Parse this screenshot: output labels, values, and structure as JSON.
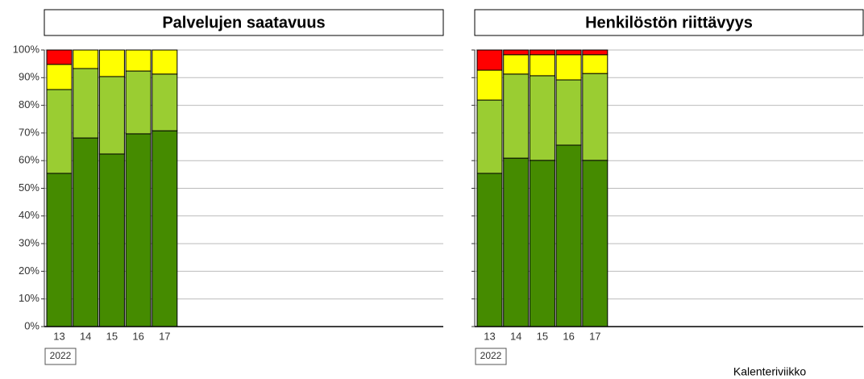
{
  "chart_data": [
    {
      "type": "stacked_bar",
      "title": "Palvelujen saatavuus",
      "year": "2022",
      "categories": [
        "13",
        "14",
        "15",
        "16",
        "17"
      ],
      "series": [
        {
          "color": "#458b00",
          "values": [
            55.4,
            68.2,
            62.4,
            69.7,
            70.8
          ]
        },
        {
          "color": "#9acd32",
          "values": [
            30.3,
            25.1,
            28.0,
            22.7,
            20.5
          ]
        },
        {
          "color": "#ffff00",
          "values": [
            9.1,
            6.7,
            9.6,
            7.6,
            8.7
          ]
        },
        {
          "color": "#ff0000",
          "values": [
            5.2,
            0,
            0,
            0,
            0
          ]
        }
      ],
      "ylim": [
        0,
        100
      ],
      "yticks": [
        {
          "value": 0,
          "label": "0%"
        },
        {
          "value": 10,
          "label": "10%"
        },
        {
          "value": 20,
          "label": "20%"
        },
        {
          "value": 30,
          "label": "30%"
        },
        {
          "value": 40,
          "label": "40%"
        },
        {
          "value": 50,
          "label": "50%"
        },
        {
          "value": 60,
          "label": "60%"
        },
        {
          "value": 70,
          "label": "70%"
        },
        {
          "value": 80,
          "label": "80%"
        },
        {
          "value": 90,
          "label": "90%"
        },
        {
          "value": 100,
          "label": "100%"
        }
      ],
      "grid": true
    },
    {
      "type": "stacked_bar",
      "title": "Henkilöstön riittävyys",
      "year": "2022",
      "xlabel": "Kalenteriviikko",
      "categories": [
        "13",
        "14",
        "15",
        "16",
        "17"
      ],
      "series": [
        {
          "color": "#458b00",
          "values": [
            55.4,
            60.9,
            60.1,
            65.6,
            60.1
          ]
        },
        {
          "color": "#9acd32",
          "values": [
            26.5,
            30.4,
            30.6,
            23.6,
            31.4
          ]
        },
        {
          "color": "#ffff00",
          "values": [
            10.8,
            7.0,
            7.6,
            9.1,
            6.8
          ]
        },
        {
          "color": "#ff0000",
          "values": [
            7.3,
            1.7,
            1.7,
            1.7,
            1.7
          ]
        }
      ],
      "ylim": [
        0,
        100
      ],
      "yticks": [
        0,
        10,
        20,
        30,
        40,
        50,
        60,
        70,
        80,
        90,
        100
      ],
      "ytick_labels": false,
      "grid": true
    }
  ]
}
